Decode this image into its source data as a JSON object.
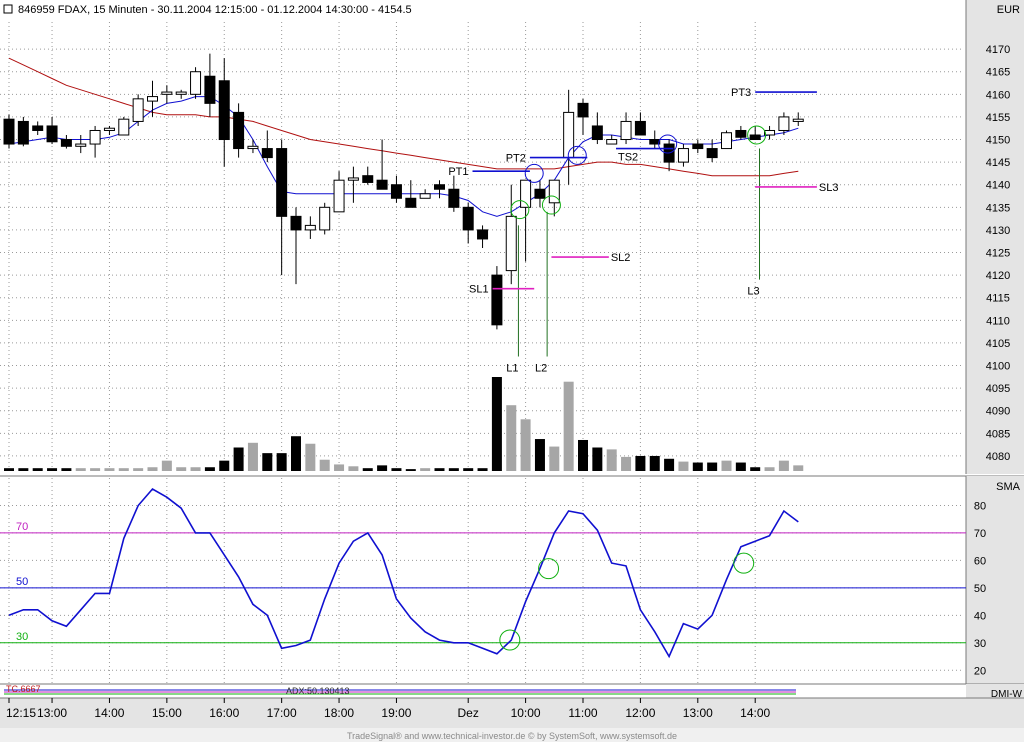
{
  "window": {
    "title": "846959  FDAX, 15 Minuten - 30.11.2004 12:15:00 - 01.12.2004 14:30:00 - 4154.5",
    "footer": "TradeSignal® and www.technical-investor.de © by SystemSoft, www.systemsoft.de"
  },
  "colors": {
    "background": "#ffffff",
    "grid": "#9a9a9a",
    "axis_panel": "#e4e4e4",
    "sma_short": "#1010d0",
    "sma_long": "#b01010",
    "up_candle": "#ffffff",
    "down_candle": "#000000",
    "volume_up": "#a6a6a6",
    "volume_down": "#000000",
    "pt_line": "#1010d0",
    "sl_line": "#e020c0",
    "entry_line": "#207020",
    "oscillator": "#1010d0",
    "level_70": "#c020c0",
    "level_50": "#1010d0",
    "level_30": "#10b010",
    "circle_green": "#10b010",
    "circle_blue": "#1010d0"
  },
  "chart_data": [
    {
      "type": "candlestick",
      "axis_unit": "EUR",
      "ylim": [
        4076,
        4176
      ],
      "yticks": [
        4080,
        4085,
        4090,
        4095,
        4100,
        4105,
        4110,
        4115,
        4120,
        4125,
        4130,
        4135,
        4140,
        4145,
        4150,
        4155,
        4160,
        4165,
        4170
      ],
      "xticks": [
        "12:15",
        "13:00",
        "14:00",
        "15:00",
        "16:00",
        "17:00",
        "18:00",
        "19:00",
        "Dez",
        "10:00",
        "11:00",
        "12:00",
        "13:00",
        "14:00"
      ],
      "xtick_index": [
        0,
        3,
        7,
        11,
        15,
        19,
        23,
        27,
        32,
        36,
        40,
        44,
        48,
        52
      ],
      "candles": [
        [
          4154.5,
          4155.5,
          4148,
          4149
        ],
        [
          4154,
          4155,
          4148.5,
          4149
        ],
        [
          4153,
          4154,
          4151,
          4152
        ],
        [
          4153,
          4155,
          4149,
          4149.5
        ],
        [
          4150,
          4151,
          4148,
          4148.5
        ],
        [
          4148.5,
          4151,
          4147,
          4149
        ],
        [
          4149,
          4153,
          4146,
          4152
        ],
        [
          4152,
          4153,
          4151,
          4152.5
        ],
        [
          4151,
          4155,
          4151,
          4154.5
        ],
        [
          4154,
          4160,
          4153,
          4159
        ],
        [
          4158.5,
          4163,
          4155,
          4159.5
        ],
        [
          4160,
          4162,
          4158,
          4160.5
        ],
        [
          4160,
          4161,
          4159,
          4160.5
        ],
        [
          4160,
          4166,
          4159,
          4165
        ],
        [
          4164,
          4169,
          4155,
          4158
        ],
        [
          4163,
          4168,
          4144,
          4150
        ],
        [
          4156,
          4158,
          4146,
          4148
        ],
        [
          4148,
          4150,
          4147,
          4148.5
        ],
        [
          4148,
          4152,
          4145,
          4146
        ],
        [
          4148,
          4150,
          4120,
          4133
        ],
        [
          4133,
          4135,
          4118,
          4130
        ],
        [
          4130,
          4133,
          4128,
          4131
        ],
        [
          4130,
          4136,
          4129,
          4135
        ],
        [
          4134,
          4143,
          4134,
          4141
        ],
        [
          4141,
          4144,
          4136,
          4141.5
        ],
        [
          4142,
          4144,
          4140,
          4140.5
        ],
        [
          4141,
          4150,
          4140,
          4139
        ],
        [
          4140,
          4142,
          4136,
          4137
        ],
        [
          4137,
          4141,
          4135,
          4135
        ],
        [
          4137,
          4139,
          4137,
          4138
        ],
        [
          4140,
          4141,
          4137,
          4139
        ],
        [
          4139,
          4142,
          4134,
          4135
        ],
        [
          4135,
          4136,
          4127,
          4130
        ],
        [
          4130,
          4131,
          4126,
          4128
        ],
        [
          4120,
          4122,
          4108,
          4109
        ],
        [
          4121,
          4140,
          4118,
          4133
        ],
        [
          4135,
          4141,
          4123,
          4141
        ],
        [
          4139,
          4141,
          4135,
          4137
        ],
        [
          4136,
          4141,
          4133,
          4141
        ],
        [
          4146,
          4161,
          4140,
          4156
        ],
        [
          4158,
          4159,
          4151,
          4155
        ],
        [
          4153,
          4156,
          4149,
          4150
        ],
        [
          4149,
          4151,
          4149,
          4150
        ],
        [
          4150,
          4156,
          4149,
          4154
        ],
        [
          4154,
          4156,
          4151,
          4151
        ],
        [
          4150,
          4152,
          4148,
          4149
        ],
        [
          4149,
          4150,
          4143,
          4145
        ],
        [
          4145,
          4149,
          4144,
          4148
        ],
        [
          4149,
          4150,
          4147,
          4148
        ],
        [
          4148,
          4150,
          4145,
          4146
        ],
        [
          4148,
          4152,
          4148,
          4151.5
        ],
        [
          4152,
          4153,
          4150,
          4150.5
        ],
        [
          4151,
          4153,
          4150,
          4150
        ],
        [
          4151,
          4153,
          4150,
          4152
        ],
        [
          4152,
          4156,
          4151,
          4155
        ],
        [
          4154,
          4156,
          4153,
          4154.5
        ]
      ],
      "sma_short": [
        4149,
        4149.5,
        4150,
        4150.5,
        4150,
        4150,
        4150,
        4150.5,
        4151.5,
        4154,
        4156.5,
        4158,
        4158.5,
        4159.5,
        4159.5,
        4157.5,
        4155,
        4150,
        4144,
        4138.5,
        4138,
        4138,
        4138,
        4138,
        4138,
        4138,
        4138,
        4138,
        4138,
        4138,
        4138,
        4137.5,
        4136.5,
        4134,
        4133,
        4134,
        4136,
        4138,
        4141,
        4146,
        4149.5,
        4151,
        4151,
        4150.5,
        4150,
        4150,
        4150,
        4149,
        4149,
        4149,
        4149.5,
        4150,
        4150.5,
        4151,
        4151.5,
        4152.5
      ],
      "sma_long": [
        4168,
        4166.5,
        4165,
        4163.5,
        4162,
        4161,
        4160,
        4159,
        4158,
        4157,
        4156,
        4155.5,
        4155.5,
        4155.5,
        4155,
        4155,
        4154.5,
        4154,
        4153,
        4152,
        4151,
        4150,
        4149.5,
        4149,
        4148.5,
        4148,
        4147.5,
        4147,
        4146.5,
        4146,
        4145.5,
        4145,
        4144.5,
        4144,
        4143.5,
        4143.5,
        4143.5,
        4143.5,
        4143.5,
        4144,
        4144.5,
        4145,
        4145,
        4144.5,
        4144.5,
        4144,
        4143.5,
        4143,
        4142.5,
        4142,
        4142,
        4142,
        4142,
        4142,
        4142.5,
        4143
      ],
      "volume_scale_max": 100,
      "volume": [
        3,
        3,
        3,
        3,
        3,
        3,
        3,
        3,
        3,
        3,
        4,
        11,
        4,
        4,
        4,
        11,
        25,
        30,
        19,
        19,
        37,
        29,
        12,
        7,
        5,
        3,
        6,
        3,
        2,
        3,
        3,
        3,
        3,
        3,
        100,
        70,
        55,
        34,
        26,
        95,
        33,
        25,
        23,
        15,
        16,
        16,
        13,
        10,
        9,
        9,
        11,
        9,
        4,
        4,
        11,
        6
      ],
      "levels": [
        {
          "label": "PT1",
          "value": 4143,
          "from": 32.3,
          "to": 36.3
        },
        {
          "label": "PT2",
          "value": 4146,
          "from": 36.3,
          "to": 40.3
        },
        {
          "label": "TS2",
          "value": 4148,
          "from": 42.3,
          "to": 46.3
        },
        {
          "label": "PT3",
          "value": 4160.5,
          "from": 52,
          "to": 56.3
        },
        {
          "label": "SL1",
          "value": 4117,
          "from": 33.7,
          "to": 36.6
        },
        {
          "label": "SL2",
          "value": 4124,
          "from": 37.8,
          "to": 41.8
        },
        {
          "label": "SL3",
          "value": 4139.5,
          "from": 52,
          "to": 56.3
        }
      ],
      "entries": [
        {
          "label": "L1",
          "index": 35.5,
          "top": 4131,
          "bottom": 4102
        },
        {
          "label": "L2",
          "index": 37.5,
          "top": 4134,
          "bottom": 4102
        },
        {
          "label": "L3",
          "index": 52.3,
          "top": 4148,
          "bottom": 4119
        }
      ],
      "circles": [
        {
          "index": 35.6,
          "value": 4134.5,
          "color": "green"
        },
        {
          "index": 36.6,
          "value": 4142.5,
          "color": "blue"
        },
        {
          "index": 37.8,
          "value": 4135.5,
          "color": "green"
        },
        {
          "index": 39.6,
          "value": 4146.5,
          "color": "blue"
        },
        {
          "index": 45.9,
          "value": 4149,
          "color": "blue"
        },
        {
          "index": 52.1,
          "value": 4151,
          "color": "green"
        }
      ]
    },
    {
      "type": "line",
      "axis_unit": "SMA",
      "ylim": [
        15,
        90
      ],
      "yticks": [
        20,
        30,
        40,
        50,
        60,
        70,
        80
      ],
      "reference_lines": [
        {
          "label": "70",
          "value": 70,
          "color": "level_70"
        },
        {
          "label": "50",
          "value": 50,
          "color": "level_50"
        },
        {
          "label": "30",
          "value": 30,
          "color": "level_30"
        }
      ],
      "series": [
        {
          "values": [
            40,
            42,
            42,
            38,
            36,
            42,
            48,
            48,
            68,
            80,
            86,
            83,
            79,
            70,
            70,
            62,
            54,
            44,
            40,
            28,
            29,
            31,
            46,
            59,
            67,
            70,
            62,
            46,
            39,
            34,
            31,
            30,
            30,
            28,
            26,
            31,
            45,
            57,
            70,
            78,
            77,
            71,
            59,
            58,
            42,
            34,
            25,
            37,
            35,
            40,
            53,
            65,
            67,
            69,
            78,
            74
          ]
        }
      ],
      "circles": [
        {
          "index": 34.9,
          "value": 31,
          "color": "green"
        },
        {
          "index": 37.6,
          "value": 57,
          "color": "green"
        },
        {
          "index": 51.2,
          "value": 59,
          "color": "green"
        }
      ]
    }
  ],
  "legend": {
    "adx": "ADX:50.130413",
    "dmi": "DMI-W",
    "first": "TC.6667"
  }
}
